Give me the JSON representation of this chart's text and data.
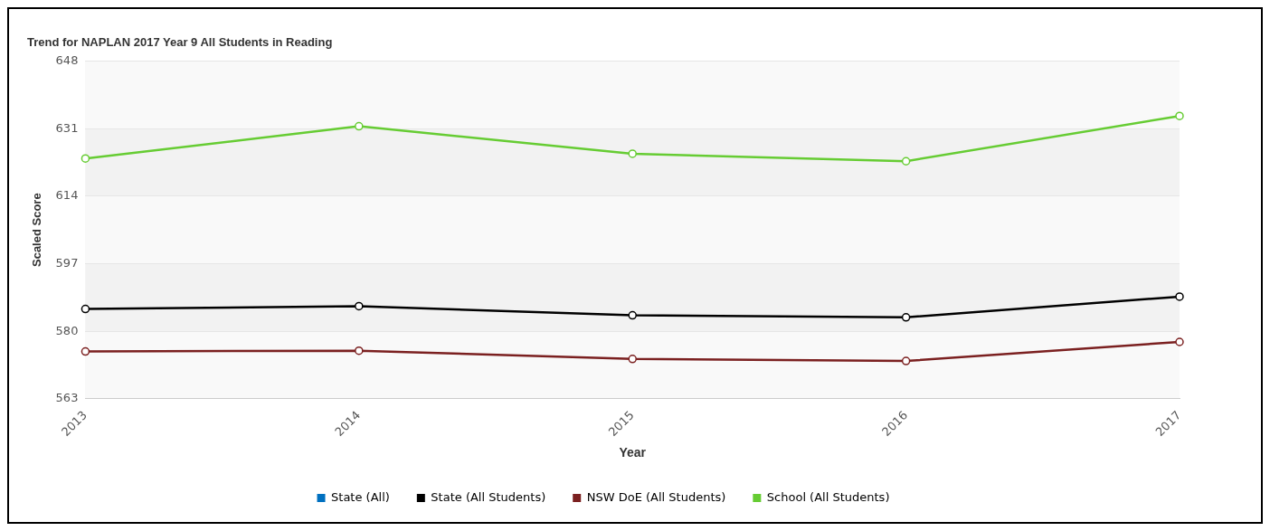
{
  "chart_data": {
    "type": "line",
    "title": "Trend for NAPLAN 2017 Year 9 All Students in Reading",
    "xlabel": "Year",
    "ylabel": "Scaled Score",
    "categories": [
      "2013",
      "2014",
      "2015",
      "2016",
      "2017"
    ],
    "series": [
      {
        "name": "State (All)",
        "color": "#0070c0",
        "values": [
          null,
          null,
          null,
          null,
          null
        ]
      },
      {
        "name": "State (All Students)",
        "color": "#000000",
        "values": [
          585.6,
          586.3,
          584.0,
          583.5,
          588.7
        ]
      },
      {
        "name": "NSW DoE (All Students)",
        "color": "#7b2020",
        "values": [
          574.9,
          575.1,
          573.0,
          572.5,
          577.3
        ]
      },
      {
        "name": "School (All Students)",
        "color": "#66cc33",
        "values": [
          623.5,
          631.6,
          624.7,
          622.8,
          634.2
        ]
      }
    ],
    "ylim": [
      563,
      648
    ],
    "yticks": [
      563,
      580,
      597,
      614,
      631,
      648
    ],
    "grid": "y",
    "legend": "bottom",
    "marker": "circle",
    "line_style": "solid"
  }
}
